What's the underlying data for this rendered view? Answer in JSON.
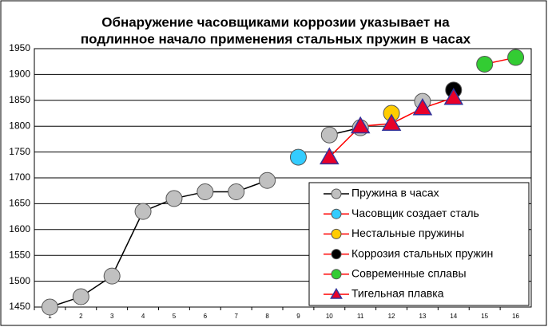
{
  "chart_data": {
    "type": "line",
    "title": [
      "Обнаружение часовщиками коррозии указывает на",
      "подлинное начало применения стальных пружин в часах"
    ],
    "categories": [
      "1",
      "2",
      "3",
      "4",
      "5",
      "6",
      "7",
      "8",
      "9",
      "10",
      "11",
      "12",
      "13",
      "14",
      "15",
      "16"
    ],
    "ylim": [
      1450,
      1950
    ],
    "yticks": [
      1450,
      1500,
      1550,
      1600,
      1650,
      1700,
      1750,
      1800,
      1850,
      1900,
      1950
    ],
    "grid": true,
    "legend": "bottom-right",
    "series": [
      {
        "name": "Пружина в часах",
        "color": "#c0c0c0",
        "line_color": "#000000",
        "marker": "circle",
        "values": [
          1450,
          1470,
          1510,
          1635,
          1660,
          1673,
          1673,
          1695,
          null,
          1783,
          1797,
          null,
          1848,
          null,
          null,
          null
        ]
      },
      {
        "name": "Часовщик создает сталь",
        "color": "#33ccff",
        "line_color": "#ff0000",
        "marker": "circle",
        "values": [
          null,
          null,
          null,
          null,
          null,
          null,
          null,
          null,
          1740,
          null,
          null,
          null,
          null,
          null,
          null,
          null
        ]
      },
      {
        "name": "Нестальные пружины",
        "color": "#ffcc00",
        "line_color": "#ff0000",
        "marker": "circle",
        "values": [
          null,
          null,
          null,
          null,
          null,
          null,
          null,
          null,
          null,
          null,
          null,
          1825,
          null,
          null,
          null,
          null
        ]
      },
      {
        "name": "Коррозия стальных пружин",
        "color": "#000000",
        "line_color": "#ff0000",
        "marker": "circle",
        "values": [
          null,
          null,
          null,
          null,
          null,
          null,
          null,
          null,
          null,
          null,
          null,
          null,
          null,
          1870,
          null,
          null
        ]
      },
      {
        "name": "Современные сплавы",
        "color": "#33cc33",
        "line_color": "#ff0000",
        "marker": "circle",
        "values": [
          null,
          null,
          null,
          null,
          null,
          null,
          null,
          null,
          null,
          null,
          null,
          null,
          null,
          null,
          1920,
          1933
        ]
      },
      {
        "name": "Тигельная плавка",
        "color": "#e8002a",
        "line_color": "#ff0000",
        "marker": "triangle",
        "values": [
          null,
          null,
          null,
          null,
          null,
          null,
          null,
          null,
          null,
          1740,
          1800,
          1805,
          1835,
          1855,
          null,
          null
        ]
      }
    ]
  }
}
